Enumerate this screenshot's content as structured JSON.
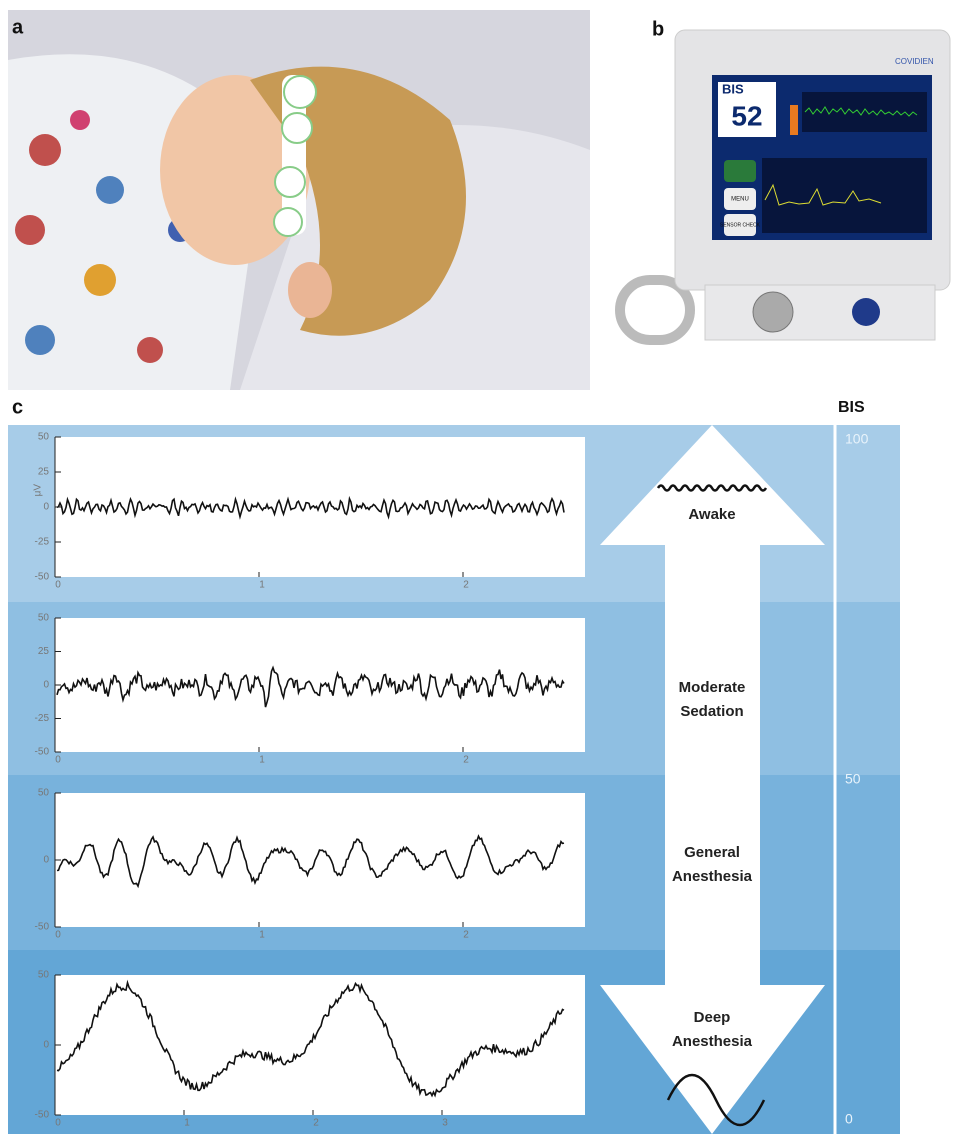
{
  "panels": {
    "a": {
      "label": "a"
    },
    "b": {
      "label": "b",
      "monitor": {
        "brand": "COVIDIEN",
        "bis_label": "BIS",
        "bis_value": "52",
        "buttons": [
          "MENU",
          "SENSOR CHECK"
        ]
      }
    },
    "c": {
      "label": "c",
      "scale_title": "BIS",
      "scale_ticks": [
        "100",
        "50",
        "0"
      ],
      "states": [
        [
          "Awake"
        ],
        [
          "Moderate",
          "Sedation"
        ],
        [
          "General",
          "Anesthesia"
        ],
        [
          "Deep",
          "Anesthesia"
        ]
      ],
      "traces": [
        {
          "y_unit": "μV",
          "yticks": [
            "50",
            "25",
            "0",
            "-25",
            "-50"
          ],
          "xticks": [
            "0",
            "1",
            "2"
          ]
        },
        {
          "yticks": [
            "50",
            "25",
            "0",
            "-25",
            "-50"
          ],
          "xticks": [
            "0",
            "1",
            "2"
          ]
        },
        {
          "yticks": [
            "50",
            "0",
            "-50"
          ],
          "xticks": [
            "0",
            "1",
            "2"
          ]
        },
        {
          "yticks": [
            "50",
            "0",
            "-50"
          ],
          "xticks": [
            "0",
            "1",
            "2",
            "3"
          ]
        }
      ]
    }
  }
}
